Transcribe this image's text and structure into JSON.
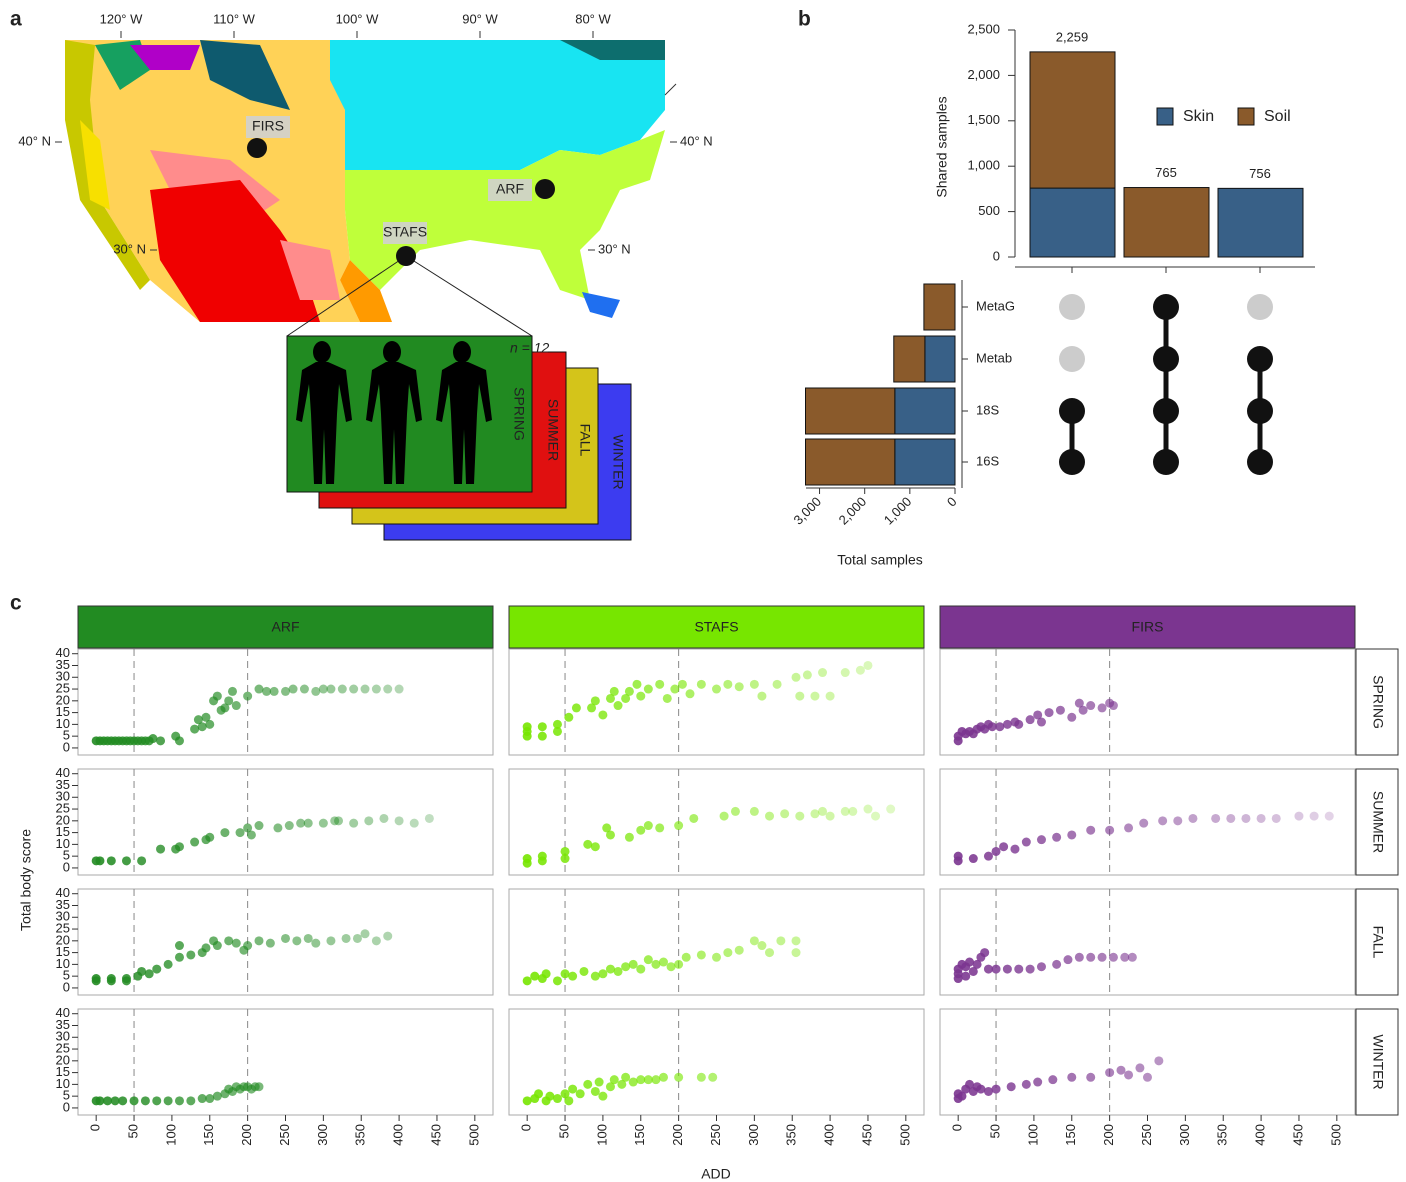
{
  "panel_labels": [
    "a",
    "b",
    "c"
  ],
  "map": {
    "longitude_labels": [
      "120° W",
      "110° W",
      "100° W",
      "90° W",
      "80° W"
    ],
    "latitude_labels": [
      "40° N",
      "30° N"
    ],
    "sites": [
      "FIRS",
      "ARF",
      "STAFS"
    ],
    "sample_size": "n = 12",
    "seasons": [
      "SPRING",
      "SUMMER",
      "FALL",
      "WINTER"
    ]
  },
  "chart_data": [
    {
      "type": "bar",
      "stacked": true,
      "ylabel": "Shared samples",
      "ylim": [
        0,
        2500
      ],
      "yticks": [
        0,
        500,
        {
          "value": 1000,
          "label": "1,000"
        },
        {
          "value": 1500,
          "label": "1,500"
        },
        {
          "value": 2000,
          "label": "2,000"
        },
        {
          "value": 2500,
          "label": "2,500"
        }
      ],
      "series": [
        {
          "name": "Skin",
          "color": "#386087",
          "values": [
            759,
            0,
            756
          ]
        },
        {
          "name": "Soil",
          "color": "#8a5a2b",
          "values": [
            1500,
            765,
            0
          ]
        }
      ],
      "totals": [
        2259,
        765,
        756
      ],
      "value_labels": [
        "2,259",
        "765",
        "756"
      ]
    },
    {
      "type": "barh",
      "stacked": true,
      "xlabel": "Total samples",
      "categories": [
        "MetaG",
        "Metab",
        "18S",
        "16S"
      ],
      "xlim": [
        0,
        3300
      ],
      "xticks": [
        0,
        {
          "value": 1000,
          "label": "1,000"
        },
        {
          "value": 2000,
          "label": "2,000"
        },
        {
          "value": 3000,
          "label": "3,000"
        }
      ],
      "series": [
        {
          "color": "#386087",
          "values": [
            0,
            667,
            1333,
            1333
          ]
        },
        {
          "color": "#8a5a2b",
          "values": [
            689,
            689,
            1978,
            1978
          ]
        }
      ]
    },
    {
      "type": "matrix",
      "membership": [
        [
          false,
          false,
          true,
          true
        ],
        [
          true,
          true,
          true,
          true
        ],
        [
          false,
          true,
          true,
          true
        ]
      ],
      "on_color": "#111111",
      "off_color": "#cccccc"
    },
    {
      "type": "scatter",
      "xlabel": "ADD",
      "ylabel": "Total body score",
      "xlim": [
        -24,
        524
      ],
      "xticks": [
        0,
        50,
        100,
        150,
        200,
        250,
        300,
        350,
        400,
        450,
        500
      ],
      "ylim": [
        -3,
        42
      ],
      "yticks": [
        0,
        5,
        10,
        15,
        20,
        25,
        30,
        35,
        40
      ],
      "vlines": [
        50,
        200
      ],
      "rows": [
        "SPRING",
        "SUMMER",
        "FALL",
        "WINTER"
      ],
      "columns": [
        {
          "name": "ARF",
          "color": "#228b22",
          "panels": [
            {
              "x": [
                0,
                5,
                10,
                15,
                20,
                25,
                30,
                35,
                40,
                45,
                50,
                55,
                60,
                65,
                70,
                75,
                85,
                105,
                110,
                130,
                135,
                140,
                145,
                150,
                155,
                160,
                165,
                170,
                175,
                180,
                185,
                200,
                215,
                225,
                235,
                250,
                260,
                275,
                290,
                300,
                310,
                325,
                340,
                355,
                370,
                385,
                400
              ],
              "y": [
                3,
                3,
                3,
                3,
                3,
                3,
                3,
                3,
                3,
                3,
                3,
                3,
                3,
                3,
                3,
                4,
                3,
                5,
                3,
                8,
                12,
                9,
                13,
                10,
                20,
                22,
                16,
                17,
                20,
                24,
                18,
                22,
                25,
                24,
                24,
                24,
                25,
                25,
                24,
                25,
                25,
                25,
                25,
                25,
                25,
                25,
                25
              ]
            },
            {
              "x": [
                0,
                5,
                20,
                40,
                60,
                85,
                105,
                110,
                130,
                145,
                150,
                170,
                190,
                200,
                205,
                215,
                240,
                255,
                270,
                280,
                300,
                315,
                320,
                340,
                360,
                380,
                400,
                420,
                440
              ],
              "y": [
                3,
                3,
                3,
                3,
                3,
                8,
                8,
                9,
                11,
                12,
                13,
                15,
                15,
                17,
                14,
                18,
                17,
                18,
                19,
                19,
                19,
                20,
                20,
                19,
                20,
                21,
                20,
                19,
                21
              ]
            },
            {
              "x": [
                0,
                0,
                20,
                20,
                40,
                40,
                55,
                60,
                70,
                80,
                95,
                110,
                110,
                125,
                140,
                145,
                155,
                160,
                175,
                185,
                195,
                200,
                215,
                230,
                250,
                265,
                280,
                290,
                310,
                330,
                345,
                355,
                370,
                385
              ],
              "y": [
                3,
                4,
                3,
                4,
                3,
                4,
                5,
                7,
                6,
                8,
                10,
                13,
                18,
                14,
                15,
                17,
                20,
                18,
                20,
                19,
                16,
                18,
                20,
                19,
                21,
                20,
                21,
                19,
                20,
                21,
                21,
                23,
                20,
                22
              ]
            },
            {
              "x": [
                0,
                5,
                15,
                25,
                35,
                50,
                65,
                80,
                95,
                110,
                125,
                140,
                150,
                160,
                170,
                175,
                180,
                185,
                190,
                195,
                200,
                205,
                210,
                215
              ],
              "y": [
                3,
                3,
                3,
                3,
                3,
                3,
                3,
                3,
                3,
                3,
                3,
                4,
                4,
                5,
                6,
                8,
                7,
                9,
                8,
                9,
                9,
                8,
                9,
                9
              ]
            }
          ]
        },
        {
          "name": "STAFS",
          "color": "#77e600",
          "panels": [
            {
              "x": [
                0,
                0,
                0,
                20,
                20,
                40,
                40,
                55,
                65,
                85,
                90,
                100,
                110,
                115,
                120,
                130,
                135,
                145,
                150,
                160,
                175,
                185,
                195,
                205,
                215,
                230,
                250,
                265,
                280,
                300,
                310,
                330,
                355,
                360,
                370,
                380,
                390,
                400,
                420,
                440,
                450
              ],
              "y": [
                5,
                7,
                9,
                5,
                9,
                7,
                10,
                13,
                17,
                17,
                20,
                14,
                21,
                24,
                18,
                21,
                24,
                27,
                22,
                25,
                27,
                21,
                25,
                27,
                23,
                27,
                25,
                27,
                26,
                27,
                22,
                27,
                30,
                22,
                31,
                22,
                32,
                22,
                32,
                33,
                35
              ]
            },
            {
              "x": [
                0,
                0,
                20,
                20,
                50,
                50,
                80,
                90,
                105,
                110,
                135,
                150,
                160,
                175,
                200,
                220,
                260,
                275,
                300,
                320,
                340,
                360,
                380,
                390,
                400,
                420,
                430,
                450,
                460,
                480
              ],
              "y": [
                2,
                4,
                3,
                5,
                4,
                7,
                10,
                9,
                17,
                14,
                13,
                16,
                18,
                17,
                18,
                21,
                22,
                24,
                24,
                22,
                23,
                22,
                23,
                24,
                22,
                24,
                24,
                25,
                22,
                25
              ]
            },
            {
              "x": [
                0,
                10,
                20,
                25,
                40,
                50,
                60,
                75,
                90,
                100,
                110,
                120,
                130,
                140,
                150,
                160,
                170,
                180,
                190,
                200,
                210,
                230,
                250,
                265,
                280,
                300,
                310,
                320,
                335,
                355,
                355
              ],
              "y": [
                3,
                5,
                4,
                6,
                3,
                6,
                5,
                7,
                5,
                6,
                8,
                7,
                9,
                10,
                8,
                12,
                10,
                11,
                9,
                10,
                13,
                14,
                13,
                15,
                16,
                20,
                18,
                15,
                20,
                20,
                15
              ]
            },
            {
              "x": [
                0,
                10,
                15,
                25,
                30,
                40,
                50,
                55,
                60,
                70,
                80,
                90,
                95,
                100,
                110,
                115,
                125,
                130,
                140,
                150,
                160,
                170,
                180,
                200,
                230,
                245
              ],
              "y": [
                3,
                4,
                6,
                3,
                5,
                4,
                6,
                3,
                8,
                6,
                10,
                7,
                11,
                5,
                9,
                12,
                10,
                13,
                11,
                12,
                12,
                12,
                13,
                13,
                13,
                13
              ]
            }
          ]
        },
        {
          "name": "FIRS",
          "color": "#7b3590",
          "panels": [
            {
              "x": [
                0,
                0,
                5,
                10,
                15,
                20,
                25,
                30,
                35,
                40,
                45,
                55,
                65,
                75,
                80,
                95,
                105,
                110,
                120,
                135,
                150,
                160,
                165,
                175,
                190,
                200,
                205
              ],
              "y": [
                3,
                5,
                7,
                6,
                7,
                6,
                8,
                9,
                8,
                10,
                9,
                9,
                10,
                11,
                10,
                12,
                14,
                11,
                15,
                16,
                13,
                19,
                16,
                18,
                17,
                19,
                18
              ]
            },
            {
              "x": [
                0,
                0,
                20,
                40,
                50,
                60,
                75,
                90,
                110,
                130,
                150,
                175,
                200,
                225,
                245,
                270,
                290,
                310,
                340,
                360,
                380,
                400,
                420,
                450,
                470,
                490
              ],
              "y": [
                3,
                5,
                4,
                5,
                7,
                9,
                8,
                11,
                12,
                13,
                14,
                16,
                16,
                17,
                19,
                20,
                20,
                21,
                21,
                21,
                21,
                21,
                21,
                22,
                22,
                22
              ]
            },
            {
              "x": [
                0,
                0,
                0,
                5,
                10,
                10,
                15,
                20,
                25,
                30,
                35,
                40,
                50,
                65,
                80,
                95,
                110,
                130,
                145,
                160,
                175,
                190,
                205,
                220,
                230
              ],
              "y": [
                4,
                6,
                8,
                10,
                5,
                9,
                11,
                7,
                10,
                13,
                15,
                8,
                8,
                8,
                8,
                8,
                9,
                10,
                12,
                13,
                13,
                13,
                13,
                13,
                13
              ]
            },
            {
              "x": [
                0,
                0,
                5,
                10,
                15,
                20,
                25,
                30,
                40,
                50,
                70,
                90,
                105,
                125,
                150,
                175,
                200,
                215,
                225,
                240,
                250,
                265
              ],
              "y": [
                4,
                6,
                5,
                8,
                10,
                7,
                9,
                8,
                7,
                8,
                9,
                10,
                11,
                12,
                13,
                13,
                15,
                16,
                14,
                17,
                13,
                20
              ]
            }
          ]
        }
      ]
    }
  ]
}
